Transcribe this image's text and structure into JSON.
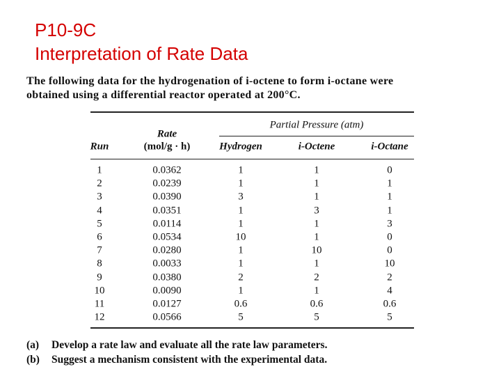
{
  "header": {
    "code": "P10-9C",
    "title": "Interpretation of Rate Data"
  },
  "intro": [
    "The following data for the hydrogenation of i-octene to form i-octane were",
    "obtained using a differential reactor operated at 200°C."
  ],
  "table": {
    "group_header": "Partial Pressure (atm)",
    "columns": [
      "Run",
      [
        "Rate",
        "(mol/g · h)"
      ],
      "Hydrogen",
      "i-Octene",
      "i-Octane"
    ],
    "rows": [
      [
        "1",
        "0.0362",
        "1",
        "1",
        "0"
      ],
      [
        "2",
        "0.0239",
        "1",
        "1",
        "1"
      ],
      [
        "3",
        "0.0390",
        "3",
        "1",
        "1"
      ],
      [
        "4",
        "0.0351",
        "1",
        "3",
        "1"
      ],
      [
        "5",
        "0.0114",
        "1",
        "1",
        "3"
      ],
      [
        "6",
        "0.0534",
        "10",
        "1",
        "0"
      ],
      [
        "7",
        "0.0280",
        "1",
        "10",
        "0"
      ],
      [
        "8",
        "0.0033",
        "1",
        "1",
        "10"
      ],
      [
        "9",
        "0.0380",
        "2",
        "2",
        "2"
      ],
      [
        "10",
        "0.0090",
        "1",
        "1",
        "4"
      ],
      [
        "11",
        "0.0127",
        "0.6",
        "0.6",
        "0.6"
      ],
      [
        "12",
        "0.0566",
        "5",
        "5",
        "5"
      ]
    ]
  },
  "questions": [
    [
      "(a)",
      "Develop a rate law and evaluate all the rate law parameters."
    ],
    [
      "(b)",
      "Suggest a mechanism consistent with the experimental data."
    ]
  ]
}
